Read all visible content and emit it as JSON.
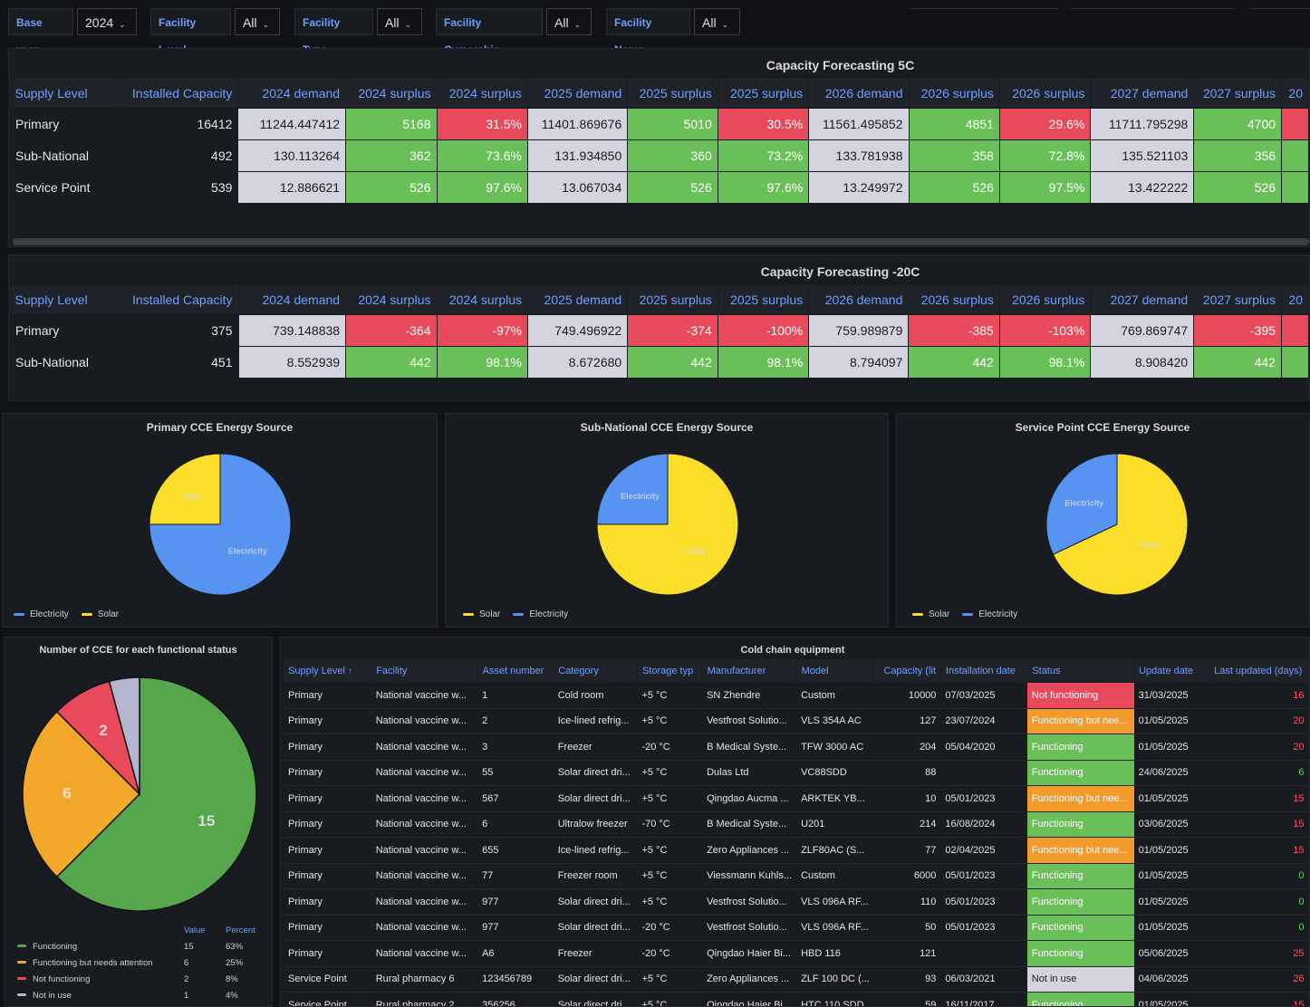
{
  "filters": [
    {
      "label": "Base year",
      "value": "2024"
    },
    {
      "label": "Facility Level",
      "value": "All"
    },
    {
      "label": "Facility Type",
      "value": "All"
    },
    {
      "label": "Facility Ownership",
      "value": "All"
    },
    {
      "label": "Facility Name",
      "value": "All"
    }
  ],
  "colors": {
    "green": "#6ac058",
    "red": "#e8495b",
    "neutral": "#d4d4de",
    "orange": "#f29b2b",
    "blue": "#6e9fff",
    "yellow": "#fade2a",
    "electricity": "#5794f2",
    "not_in_use": "#b3b6cc"
  },
  "forecast5c": {
    "title": "Capacity Forecasting 5C",
    "headers": [
      "Supply Level",
      "Installed Capacity",
      "2024 demand",
      "2024 surplus",
      "2024 surplus",
      "2025 demand",
      "2025 surplus",
      "2025 surplus",
      "2026 demand",
      "2026 surplus",
      "2026 surplus",
      "2027 demand",
      "2027 surplus",
      "20"
    ],
    "rows": [
      [
        "Primary",
        "16412",
        "11244.447412",
        "5168",
        "31.5%",
        "11401.869676",
        "5010",
        "30.5%",
        "11561.495852",
        "4851",
        "29.6%",
        "11711.795298",
        "4700",
        ""
      ],
      [
        "Sub-National",
        "492",
        "130.113264",
        "362",
        "73.6%",
        "131.934850",
        "360",
        "73.2%",
        "133.781938",
        "358",
        "72.8%",
        "135.521103",
        "356",
        ""
      ],
      [
        "Service Point",
        "539",
        "12.886621",
        "526",
        "97.6%",
        "13.067034",
        "526",
        "97.6%",
        "13.249972",
        "526",
        "97.5%",
        "13.422222",
        "526",
        ""
      ]
    ],
    "cell_status": [
      [
        "",
        "",
        "neutral",
        "good",
        "bad",
        "neutral",
        "good",
        "bad",
        "neutral",
        "good",
        "bad",
        "neutral",
        "good",
        "bad"
      ],
      [
        "",
        "",
        "neutral",
        "good",
        "good",
        "neutral",
        "good",
        "good",
        "neutral",
        "good",
        "good",
        "neutral",
        "good",
        "good"
      ],
      [
        "",
        "",
        "neutral",
        "good",
        "good",
        "neutral",
        "good",
        "good",
        "neutral",
        "good",
        "good",
        "neutral",
        "good",
        "good"
      ]
    ]
  },
  "forecast20c": {
    "title": "Capacity Forecasting -20C",
    "headers": [
      "Supply Level",
      "Installed Capacity",
      "2024 demand",
      "2024 surplus",
      "2024 surplus",
      "2025 demand",
      "2025 surplus",
      "2025 surplus",
      "2026 demand",
      "2026 surplus",
      "2026 surplus",
      "2027 demand",
      "2027 surplus",
      "20"
    ],
    "rows": [
      [
        "Primary",
        "375",
        "739.148838",
        "-364",
        "-97%",
        "749.496922",
        "-374",
        "-100%",
        "759.989879",
        "-385",
        "-103%",
        "769.869747",
        "-395",
        ""
      ],
      [
        "Sub-National",
        "451",
        "8.552939",
        "442",
        "98.1%",
        "8.672680",
        "442",
        "98.1%",
        "8.794097",
        "442",
        "98.1%",
        "8.908420",
        "442",
        ""
      ]
    ],
    "cell_status": [
      [
        "",
        "",
        "neutral",
        "bad",
        "bad",
        "neutral",
        "bad",
        "bad",
        "neutral",
        "bad",
        "bad",
        "neutral",
        "bad",
        "bad"
      ],
      [
        "",
        "",
        "neutral",
        "good",
        "good",
        "neutral",
        "good",
        "good",
        "neutral",
        "good",
        "good",
        "neutral",
        "good",
        "good"
      ]
    ]
  },
  "pies": [
    {
      "title": "Primary CCE Energy Source",
      "slices": [
        {
          "name": "Electricity",
          "value": 75,
          "color": "#5794f2"
        },
        {
          "name": "Solar",
          "value": 25,
          "color": "#fade2a"
        }
      ],
      "legend": [
        "Electricity",
        "Solar"
      ]
    },
    {
      "title": "Sub-National CCE Energy Source",
      "slices": [
        {
          "name": "Solar",
          "value": 75,
          "color": "#fade2a"
        },
        {
          "name": "Electricity",
          "value": 25,
          "color": "#5794f2"
        }
      ],
      "legend": [
        "Solar",
        "Electricity"
      ]
    },
    {
      "title": "Service Point CCE Energy Source",
      "slices": [
        {
          "name": "Solar",
          "value": 68,
          "color": "#fade2a"
        },
        {
          "name": "Electricity",
          "value": 32,
          "color": "#5794f2"
        }
      ],
      "legend": [
        "Solar",
        "Electricity"
      ]
    }
  ],
  "status_pie": {
    "title": "Number of CCE for each functional status",
    "legend_headers": {
      "value": "Value",
      "percent": "Percent"
    },
    "slices": [
      {
        "name": "Functioning",
        "value": 15,
        "percent": "63%",
        "color": "#56a64b",
        "label": "15"
      },
      {
        "name": "Functioning but needs attention",
        "value": 6,
        "percent": "25%",
        "color": "#f2a72b",
        "label": "6"
      },
      {
        "name": "Not functioning",
        "value": 2,
        "percent": "8%",
        "color": "#e8495b",
        "label": "2"
      },
      {
        "name": "Not in use",
        "value": 1,
        "percent": "4%",
        "color": "#b3b6cc",
        "label": ""
      }
    ]
  },
  "cce": {
    "title": "Cold chain equipment",
    "headers": [
      "Supply Level",
      "Facility",
      "Asset number",
      "Category",
      "Storage typ",
      "Manufacturer",
      "Model",
      "Capacity (lit",
      "Installation date",
      "Status",
      "Update date",
      "Last updated (days)"
    ],
    "sort_indicator": "↑",
    "rows": [
      [
        "Primary",
        "National vaccine w...",
        "1",
        "Cold room",
        "+5 °C",
        "SN Zhendre",
        "Custom",
        "10000",
        "07/03/2025",
        "Not functioning",
        "31/03/2025",
        "16"
      ],
      [
        "Primary",
        "National vaccine w...",
        "2",
        "Ice-lined refrig...",
        "+5 °C",
        "Vestfrost Solutio...",
        "VLS 354A AC",
        "127",
        "23/07/2024",
        "Functioning but nee...",
        "01/05/2025",
        "20"
      ],
      [
        "Primary",
        "National vaccine w...",
        "3",
        "Freezer",
        "-20 °C",
        "B Medical Syste...",
        "TFW 3000 AC",
        "204",
        "05/04/2020",
        "Functioning",
        "01/05/2025",
        "20"
      ],
      [
        "Primary",
        "National vaccine w...",
        "55",
        "Solar direct dri...",
        "+5 °C",
        "Dulas Ltd",
        "VC88SDD",
        "88",
        "",
        "Functioning",
        "24/06/2025",
        "6"
      ],
      [
        "Primary",
        "National vaccine w...",
        "567",
        "Solar direct dri...",
        "+5 °C",
        "Qingdao Aucma ...",
        "ARKTEK YB...",
        "10",
        "05/01/2023",
        "Functioning but nee...",
        "01/05/2025",
        "15"
      ],
      [
        "Primary",
        "National vaccine w...",
        "6",
        "Ultralow freezer",
        "-70 °C",
        "B Medical Syste...",
        "U201",
        "214",
        "16/08/2024",
        "Functioning",
        "03/06/2025",
        "15"
      ],
      [
        "Primary",
        "National vaccine w...",
        "655",
        "Ice-lined refrig...",
        "+5 °C",
        "Zero Appliances ...",
        "ZLF80AC (S...",
        "77",
        "02/04/2025",
        "Functioning but nee...",
        "01/05/2025",
        "15"
      ],
      [
        "Primary",
        "National vaccine w...",
        "77",
        "Freezer room",
        "+5 °C",
        "Viessmann Kuhls...",
        "Custom",
        "6000",
        "05/01/2023",
        "Functioning",
        "01/05/2025",
        "0"
      ],
      [
        "Primary",
        "National vaccine w...",
        "977",
        "Solar direct dri...",
        "+5 °C",
        "Vestfrost Solutio...",
        "VLS 096A RF...",
        "110",
        "05/01/2023",
        "Functioning",
        "01/05/2025",
        "0"
      ],
      [
        "Primary",
        "National vaccine w...",
        "977",
        "Solar direct dri...",
        "-20 °C",
        "Vestfrost Solutio...",
        "VLS 096A RF...",
        "50",
        "05/01/2023",
        "Functioning",
        "01/05/2025",
        "0"
      ],
      [
        "Primary",
        "National vaccine w...",
        "A6",
        "Freezer",
        "-20 °C",
        "Qingdao Haier Bi...",
        "HBD 116",
        "121",
        "",
        "Functioning",
        "05/06/2025",
        "25"
      ],
      [
        "Service Point",
        "Rural pharmacy 6",
        "123456789",
        "Solar direct dri...",
        "+5 °C",
        "Zero Appliances ...",
        "ZLF 100 DC (...",
        "93",
        "06/03/2021",
        "Not in use",
        "04/06/2025",
        "26"
      ],
      [
        "Service Point",
        "Rural pharmacy 2",
        "356256",
        "Solar direct dri...",
        "+5 °C",
        "Qingdao Haier Bi...",
        "HTC 110 SDD",
        "59",
        "16/11/2017",
        "Functioning",
        "01/05/2025",
        "15"
      ]
    ]
  }
}
